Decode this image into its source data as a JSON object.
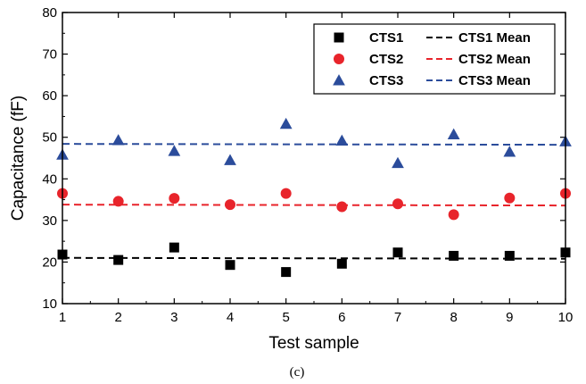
{
  "caption": "(c)",
  "chart_data": {
    "type": "scatter",
    "xlabel": "Test sample",
    "ylabel": "Capacitance (fF)",
    "xlim": [
      1,
      10
    ],
    "ylim": [
      10,
      80
    ],
    "x_ticks": [
      1,
      2,
      3,
      4,
      5,
      6,
      7,
      8,
      9,
      10
    ],
    "y_ticks": [
      10,
      20,
      30,
      40,
      50,
      60,
      70,
      80
    ],
    "grid": false,
    "legend_position": "top-right",
    "x": [
      1,
      2,
      3,
      4,
      5,
      6,
      7,
      8,
      9,
      10
    ],
    "series": [
      {
        "name": "CTS1",
        "marker": "square",
        "color": "#000000",
        "values": [
          21.8,
          20.5,
          23.5,
          19.3,
          17.6,
          19.6,
          22.3,
          21.5,
          21.5,
          22.3
        ],
        "mean_name": "CTS1 Mean",
        "mean_line": [
          21.0,
          20.8
        ]
      },
      {
        "name": "CTS2",
        "marker": "circle",
        "color": "#e8242b",
        "values": [
          36.5,
          34.6,
          35.3,
          33.8,
          36.5,
          33.3,
          34.0,
          31.4,
          35.4,
          36.5
        ],
        "mean_name": "CTS2 Mean",
        "mean_line": [
          33.8,
          33.6
        ]
      },
      {
        "name": "CTS3",
        "marker": "triangle",
        "color": "#2b4c9b",
        "values": [
          45.8,
          49.3,
          46.7,
          44.5,
          53.2,
          49.2,
          43.8,
          50.7,
          46.5,
          49.0
        ],
        "mean_name": "CTS3 Mean",
        "mean_line": [
          48.4,
          48.2
        ]
      }
    ]
  }
}
